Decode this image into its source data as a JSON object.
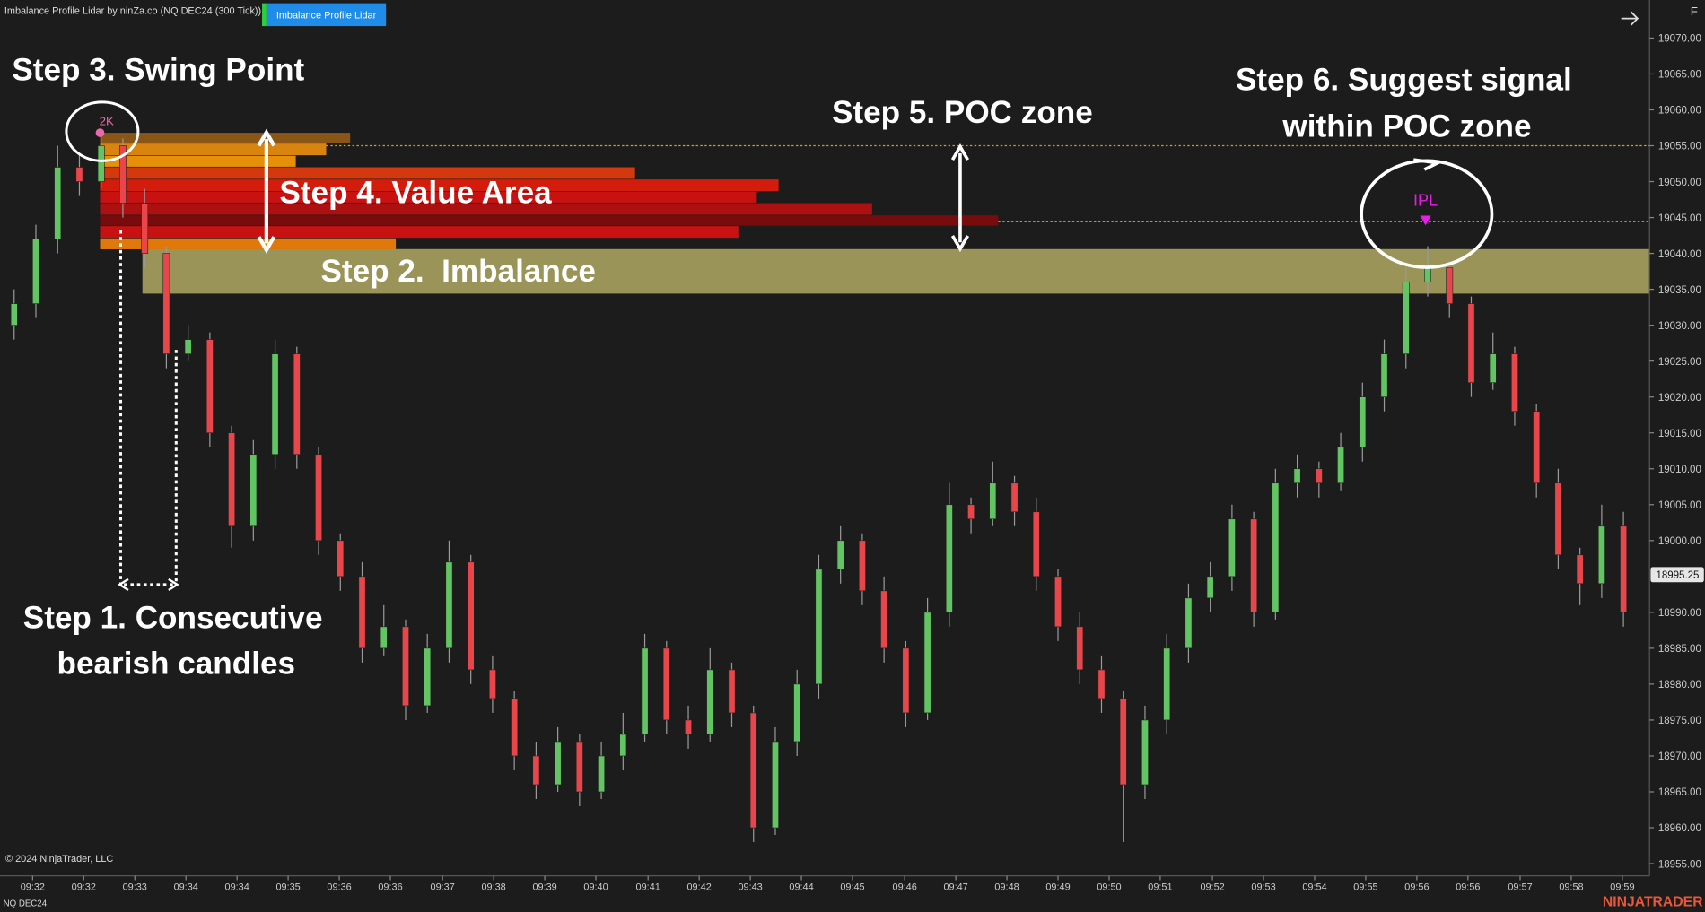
{
  "chart_data": {
    "type": "candlestick",
    "title": "Imbalance Profile Lidar by ninZa.co (NQ DEC24 (300 Tick))",
    "indicator_button": "Imbalance Profile Lidar",
    "corner_label": "F",
    "copyright": "© 2024 NinjaTrader, LLC",
    "instrument": "NQ DEC24",
    "brand": "NINJATRADER",
    "up_color": "#62c462",
    "down_color": "#e8464b",
    "wick_color": "#9a9a9a",
    "open": [
      19030,
      19033,
      19042,
      19052,
      19050,
      19055,
      19047,
      19040,
      19026,
      19028,
      19015,
      19002,
      19012,
      19026,
      19012,
      19000,
      18995,
      18985,
      18988,
      18977,
      18985,
      18997,
      18982,
      18978,
      18970,
      18966,
      18972,
      18965,
      18970,
      18973,
      18985,
      18975,
      18973,
      18982,
      18976,
      18960,
      18972,
      18980,
      18996,
      19000,
      18993,
      18985,
      18976,
      18990,
      19005,
      19003,
      19008,
      19004,
      18995,
      18988,
      18982,
      18978,
      18966,
      18975,
      18985,
      18992,
      18995,
      19003,
      18990,
      19008,
      19010,
      19008,
      19013,
      19020,
      19026,
      19036,
      19038,
      19033,
      19022,
      19026,
      19018,
      19008,
      18998,
      18994,
      19002
    ],
    "high": [
      19035,
      19044,
      19055,
      19054,
      19057,
      19056,
      19049,
      19041,
      19030,
      19029,
      19016,
      19014,
      19028,
      19027,
      19013,
      19001,
      18997,
      18991,
      18989,
      18987,
      19000,
      18998,
      18984,
      18979,
      18972,
      18974,
      18973,
      18972,
      18976,
      18987,
      18986,
      18977,
      18985,
      18983,
      18977,
      18974,
      18982,
      18998,
      19002,
      19001,
      18995,
      18986,
      18992,
      19008,
      19006,
      19011,
      19009,
      19006,
      18996,
      18990,
      18984,
      18979,
      18977,
      18987,
      18994,
      18997,
      19005,
      19004,
      19010,
      19012,
      19011,
      19015,
      19022,
      19028,
      19038,
      19041,
      19039,
      19034,
      19029,
      19027,
      19019,
      19010,
      18999,
      19005,
      19004
    ],
    "low": [
      19028,
      19031,
      19040,
      19048,
      19049,
      19045,
      19038,
      19024,
      19025,
      19013,
      18999,
      19000,
      19010,
      19010,
      18998,
      18993,
      18983,
      18984,
      18975,
      18976,
      18983,
      18980,
      18976,
      18968,
      18964,
      18965,
      18963,
      18964,
      18968,
      18972,
      18973,
      18971,
      18972,
      18974,
      18958,
      18959,
      18970,
      18978,
      18994,
      18991,
      18983,
      18974,
      18975,
      18988,
      19001,
      19002,
      19002,
      18993,
      18986,
      18980,
      18976,
      18958,
      18964,
      18973,
      18983,
      18990,
      18993,
      18988,
      18989,
      19006,
      19006,
      19007,
      19011,
      19018,
      19024,
      19034,
      19031,
      19020,
      19021,
      19016,
      19006,
      18996,
      18991,
      18992,
      18988
    ],
    "close": [
      19033,
      19042,
      19052,
      19050,
      19055,
      19047,
      19040,
      19026,
      19028,
      19015,
      19002,
      19012,
      19026,
      19012,
      19000,
      18995,
      18985,
      18988,
      18977,
      18985,
      18997,
      18982,
      18978,
      18970,
      18966,
      18972,
      18965,
      18970,
      18973,
      18985,
      18975,
      18973,
      18982,
      18976,
      18960,
      18972,
      18980,
      18996,
      19000,
      18993,
      18985,
      18976,
      18990,
      19005,
      19003,
      19008,
      19004,
      18995,
      18988,
      18982,
      18978,
      18966,
      18975,
      18985,
      18992,
      18995,
      19003,
      18990,
      19008,
      19010,
      19008,
      19013,
      19020,
      19026,
      19036,
      19038,
      19033,
      19022,
      19026,
      19018,
      19008,
      18998,
      18994,
      19002,
      18990
    ],
    "xlim": [
      -0.65,
      75.2
    ],
    "ylim": [
      18953.3,
      19075.3
    ],
    "xticks": [
      {
        "value": 0.85,
        "label": "09:32"
      },
      {
        "value": 3.2,
        "label": "09:32"
      },
      {
        "value": 5.55,
        "label": "09:33"
      },
      {
        "value": 7.9,
        "label": "09:34"
      },
      {
        "value": 10.25,
        "label": "09:34"
      },
      {
        "value": 12.6,
        "label": "09:35"
      },
      {
        "value": 14.95,
        "label": "09:36"
      },
      {
        "value": 17.3,
        "label": "09:36"
      },
      {
        "value": 19.7,
        "label": "09:37"
      },
      {
        "value": 22.05,
        "label": "09:38"
      },
      {
        "value": 24.4,
        "label": "09:39"
      },
      {
        "value": 26.75,
        "label": "09:40"
      },
      {
        "value": 29.15,
        "label": "09:41"
      },
      {
        "value": 31.5,
        "label": "09:42"
      },
      {
        "value": 33.85,
        "label": "09:43"
      },
      {
        "value": 36.2,
        "label": "09:44"
      },
      {
        "value": 38.55,
        "label": "09:45"
      },
      {
        "value": 40.95,
        "label": "09:46"
      },
      {
        "value": 43.3,
        "label": "09:47"
      },
      {
        "value": 45.65,
        "label": "09:48"
      },
      {
        "value": 48,
        "label": "09:49"
      },
      {
        "value": 50.35,
        "label": "09:50"
      },
      {
        "value": 52.7,
        "label": "09:51"
      },
      {
        "value": 55.1,
        "label": "09:52"
      },
      {
        "value": 57.45,
        "label": "09:53"
      },
      {
        "value": 59.8,
        "label": "09:54"
      },
      {
        "value": 62.15,
        "label": "09:55"
      },
      {
        "value": 64.5,
        "label": "09:56"
      },
      {
        "value": 66.85,
        "label": "09:56"
      },
      {
        "value": 69.25,
        "label": "09:57"
      },
      {
        "value": 71.6,
        "label": "09:58"
      },
      {
        "value": 73.95,
        "label": "09:59"
      }
    ],
    "yticks": [
      {
        "value": 18955,
        "label": "18955.00"
      },
      {
        "value": 18960,
        "label": "18960.00"
      },
      {
        "value": 18965,
        "label": "18965.00"
      },
      {
        "value": 18970,
        "label": "18970.00"
      },
      {
        "value": 18975,
        "label": "18975.00"
      },
      {
        "value": 18980,
        "label": "18980.00"
      },
      {
        "value": 18985,
        "label": "18985.00"
      },
      {
        "value": 18990,
        "label": "18990.00"
      },
      {
        "value": 19000,
        "label": "19000.00"
      },
      {
        "value": 19005,
        "label": "19005.00"
      },
      {
        "value": 19010,
        "label": "19010.00"
      },
      {
        "value": 19015,
        "label": "19015.00"
      },
      {
        "value": 19020,
        "label": "19020.00"
      },
      {
        "value": 19025,
        "label": "19025.00"
      },
      {
        "value": 19030,
        "label": "19030.00"
      },
      {
        "value": 19035,
        "label": "19035.00"
      },
      {
        "value": 19040,
        "label": "19040.00"
      },
      {
        "value": 19045,
        "label": "19045.00"
      },
      {
        "value": 19050,
        "label": "19050.00"
      },
      {
        "value": 19055,
        "label": "19055.00"
      },
      {
        "value": 19060,
        "label": "19060.00"
      },
      {
        "value": 19065,
        "label": "19065.00"
      },
      {
        "value": 19070,
        "label": "19070.00"
      }
    ],
    "price_marker": {
      "value": 18995.25,
      "label": "18995.25"
    },
    "imbalance_zone": {
      "low": 19034.4,
      "high": 19040.6,
      "start": 5.9,
      "color": "#9a9458"
    },
    "profile": {
      "start": 3.95,
      "rows": [
        {
          "low": 19055.3,
          "high": 19056.8,
          "end": 15.45,
          "color": "#8a5618"
        },
        {
          "low": 19053.6,
          "high": 19055.3,
          "end": 14.35,
          "color": "#d9840e"
        },
        {
          "low": 19052,
          "high": 19053.6,
          "end": 12.95,
          "color": "#e58f0a"
        },
        {
          "low": 19050.3,
          "high": 19052,
          "end": 28.55,
          "color": "#d4380f"
        },
        {
          "low": 19048.6,
          "high": 19050.3,
          "end": 35.15,
          "color": "#d41c0c"
        },
        {
          "low": 19047,
          "high": 19048.6,
          "end": 34.15,
          "color": "#c81212"
        },
        {
          "low": 19045.3,
          "high": 19047,
          "end": 39.45,
          "color": "#ad1010"
        },
        {
          "low": 19043.8,
          "high": 19045.3,
          "end": 45.25,
          "color": "#780c0c"
        },
        {
          "low": 19042.1,
          "high": 19043.8,
          "end": 33.3,
          "color": "#c81212"
        },
        {
          "low": 19040.5,
          "high": 19042.1,
          "end": 17.55,
          "color": "#e0780a"
        }
      ]
    },
    "levels": [
      {
        "price": 19055,
        "start": 14.35,
        "color": "#d4a017"
      },
      {
        "price": 19044.4,
        "start": 45.25,
        "color": "#e0709a"
      }
    ],
    "markers": [
      {
        "label": "2K",
        "index": 3.95,
        "price": 19056.8,
        "color": "#e86aa8"
      },
      {
        "label": "IPL",
        "index": 64.9,
        "price": 19044.5,
        "color": "#e81ee8"
      }
    ],
    "annotations": [
      "Step 3. Swing Point",
      "Step 4. Value Area",
      "Step 2.  Imbalance",
      "Step 5. POC zone",
      "Step 6. Suggest signal",
      "within POC zone",
      "Step 1. Consecutive",
      "bearish candles"
    ]
  }
}
